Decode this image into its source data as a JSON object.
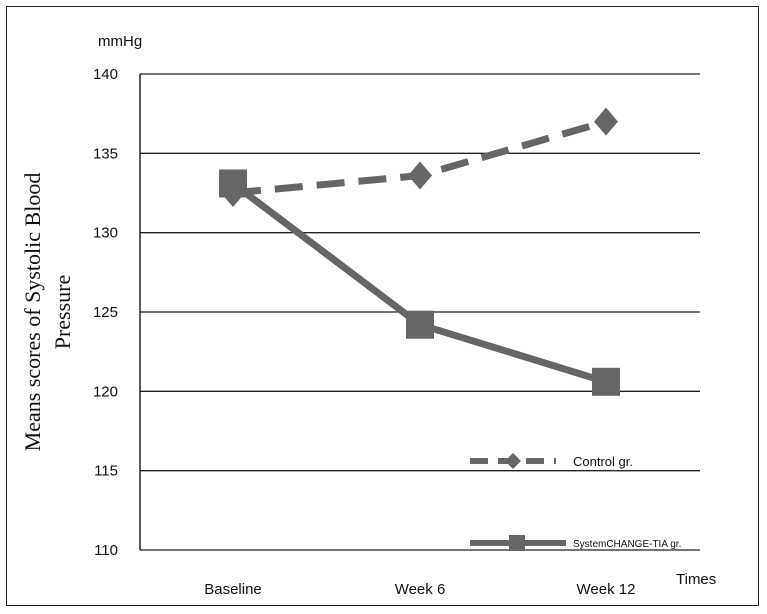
{
  "chart_data": {
    "type": "line",
    "ylabel_line1": "Means scores of Systolic Blood",
    "ylabel_line2": "Pressure",
    "unit_label": "mmHg",
    "xlabel": "Times",
    "categories": [
      "Baseline",
      "Week 6",
      "Week 12"
    ],
    "ylim": [
      110,
      140
    ],
    "yticks": [
      110,
      115,
      120,
      125,
      130,
      135,
      140
    ],
    "grid": true,
    "legend_position": "bottom-right",
    "series": [
      {
        "name": "Control gr.",
        "values": [
          132.5,
          133.6,
          137.0
        ],
        "color": "#666666",
        "style": "dashed",
        "marker": "diamond"
      },
      {
        "name": "SystemCHANGE-TIA gr.",
        "values": [
          133.1,
          124.2,
          120.6
        ],
        "color": "#666666",
        "style": "solid",
        "marker": "square"
      }
    ]
  }
}
